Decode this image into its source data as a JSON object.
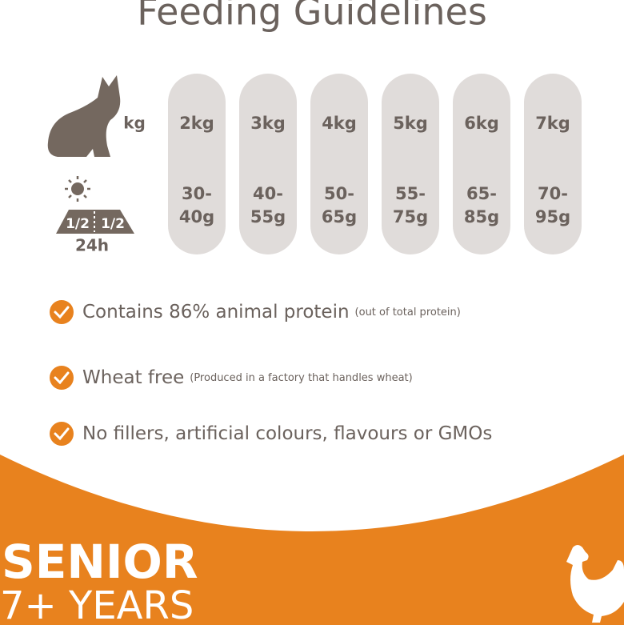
{
  "title": "Feeding Guidelines",
  "weight_label": "kg",
  "portion_label": "24h",
  "bowl_halves": [
    "1/2",
    "1/2"
  ],
  "columns": [
    {
      "weight": "2kg",
      "portion": [
        "30-",
        "40g"
      ]
    },
    {
      "weight": "3kg",
      "portion": [
        "40-",
        "55g"
      ]
    },
    {
      "weight": "4kg",
      "portion": [
        "50-",
        "65g"
      ]
    },
    {
      "weight": "5kg",
      "portion": [
        "55-",
        "75g"
      ]
    },
    {
      "weight": "6kg",
      "portion": [
        "65-",
        "85g"
      ]
    },
    {
      "weight": "7kg",
      "portion": [
        "70-",
        "95g"
      ]
    }
  ],
  "features": [
    {
      "text": "Contains 86% animal protein",
      "note": "(out of total protein)"
    },
    {
      "text": "Wheat free",
      "note": "(Produced in a factory that handles wheat)"
    },
    {
      "text": "No fillers, artificial colours, flavours or GMOs",
      "note": null
    }
  ],
  "footer": {
    "line1": "SENIOR",
    "line2": "7+ YEARS"
  }
}
